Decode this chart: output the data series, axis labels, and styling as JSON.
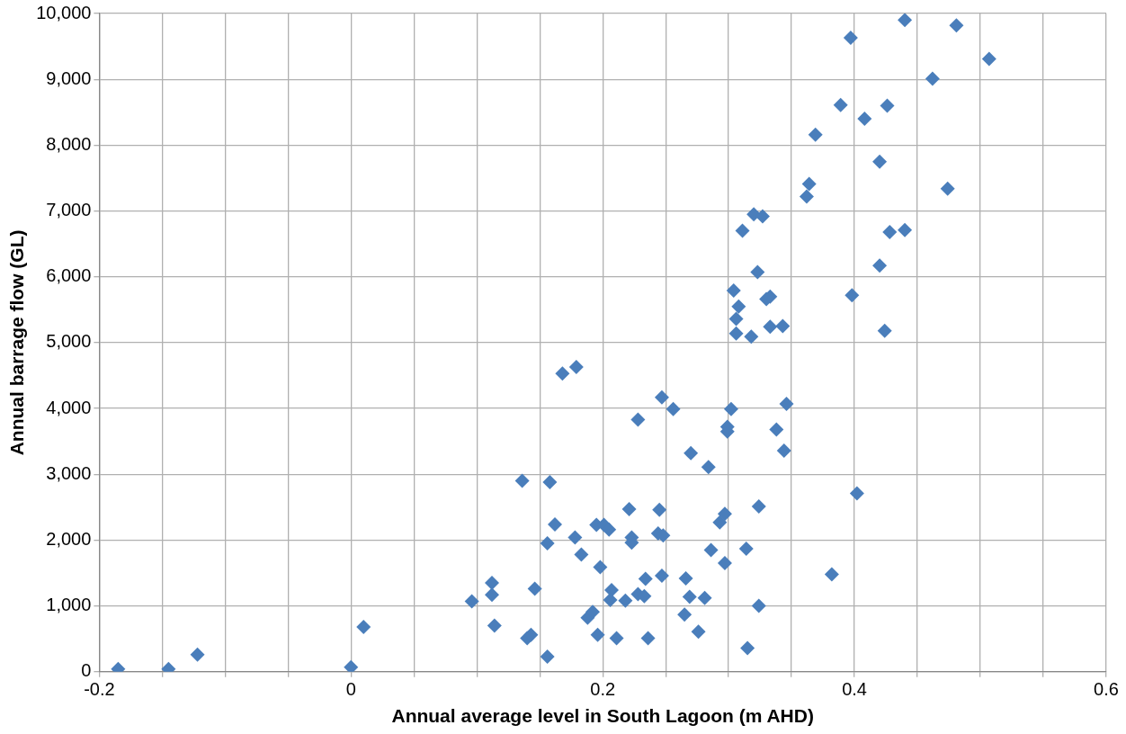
{
  "chart_data": {
    "type": "scatter",
    "xlabel": "Annual average level in South Lagoon (m AHD)",
    "ylabel": "Annual barrage flow (GL)",
    "xlim": [
      -0.2,
      0.6
    ],
    "xticks": [
      -0.2,
      {
        "value": -0.15,
        "label": null
      },
      {
        "value": -0.1,
        "label": null
      },
      {
        "value": -0.05,
        "label": null
      },
      0,
      {
        "value": 0.05,
        "label": null
      },
      {
        "value": 0.1,
        "label": null
      },
      {
        "value": 0.15,
        "label": null
      },
      0.2,
      {
        "value": 0.25,
        "label": null
      },
      {
        "value": 0.3,
        "label": null
      },
      {
        "value": 0.35,
        "label": null
      },
      0.4,
      {
        "value": 0.45,
        "label": null
      },
      {
        "value": 0.5,
        "label": null
      },
      {
        "value": 0.55,
        "label": null
      },
      0.6
    ],
    "ylim": [
      0,
      10000
    ],
    "yticks": [
      0,
      {
        "value": 1000,
        "label": "1,000"
      },
      {
        "value": 2000,
        "label": "2,000"
      },
      {
        "value": 3000,
        "label": "3,000"
      },
      {
        "value": 4000,
        "label": "4,000"
      },
      {
        "value": 5000,
        "label": "5,000"
      },
      {
        "value": 6000,
        "label": "6,000"
      },
      {
        "value": 7000,
        "label": "7,000"
      },
      {
        "value": 8000,
        "label": "8,000"
      },
      {
        "value": 9000,
        "label": "9,000"
      },
      {
        "value": 10000,
        "label": "10,000"
      }
    ],
    "grid": true,
    "legend": false,
    "marker": "diamond",
    "series": [
      {
        "color": "#4a7ebb",
        "x": [
          -0.185,
          -0.145,
          -0.122,
          0.0,
          0.01,
          0.096,
          0.112,
          0.112,
          0.114,
          0.136,
          0.14,
          0.143,
          0.146,
          0.156,
          0.156,
          0.158,
          0.162,
          0.168,
          0.178,
          0.179,
          0.183,
          0.188,
          0.192,
          0.195,
          0.196,
          0.198,
          0.201,
          0.205,
          0.207,
          0.206,
          0.211,
          0.218,
          0.221,
          0.223,
          0.223,
          0.228,
          0.228,
          0.233,
          0.234,
          0.236,
          0.244,
          0.247,
          0.245,
          0.247,
          0.248,
          0.256,
          0.265,
          0.266,
          0.269,
          0.27,
          0.276,
          0.281,
          0.284,
          0.286,
          0.293,
          0.297,
          0.297,
          0.299,
          0.299,
          0.302,
          0.304,
          0.306,
          0.306,
          0.308,
          0.311,
          0.314,
          0.315,
          0.318,
          0.32,
          0.323,
          0.324,
          0.324,
          0.327,
          0.33,
          0.333,
          0.333,
          0.338,
          0.343,
          0.344,
          0.346,
          0.362,
          0.364,
          0.369,
          0.382,
          0.389,
          0.397,
          0.398,
          0.402,
          0.408,
          0.42,
          0.42,
          0.424,
          0.426,
          0.428,
          0.44,
          0.44,
          0.462,
          0.474,
          0.481,
          0.507
        ],
        "values": [
          40,
          40,
          260,
          70,
          680,
          1070,
          1350,
          1170,
          700,
          2900,
          510,
          560,
          1260,
          230,
          1950,
          2880,
          2240,
          4530,
          2040,
          4630,
          1780,
          820,
          910,
          2230,
          560,
          1590,
          2230,
          2160,
          1240,
          1090,
          510,
          1080,
          2470,
          2040,
          1960,
          3830,
          1180,
          1150,
          1410,
          510,
          2100,
          4170,
          2460,
          1460,
          2070,
          3990,
          870,
          1420,
          1140,
          3320,
          610,
          1120,
          3110,
          1850,
          2270,
          2400,
          1650,
          3650,
          3720,
          3990,
          5790,
          5360,
          5140,
          5550,
          6700,
          1870,
          360,
          5090,
          6950,
          6070,
          1000,
          2510,
          6920,
          5660,
          5700,
          5240,
          3680,
          5250,
          3360,
          4070,
          7220,
          7410,
          8160,
          1480,
          8610,
          9630,
          5720,
          2710,
          8400,
          7750,
          6170,
          5180,
          8600,
          6680,
          6710,
          9900,
          9010,
          7340,
          9820,
          9310
        ]
      }
    ]
  }
}
